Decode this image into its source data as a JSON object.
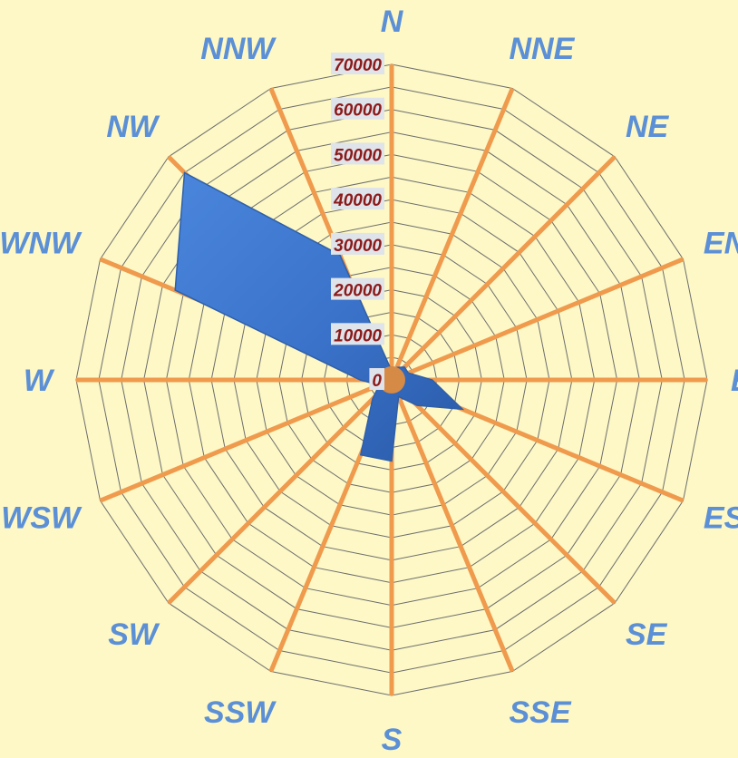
{
  "chart_data": {
    "type": "radar",
    "categories": [
      "N",
      "NNE",
      "NE",
      "ENE",
      "E",
      "ESE",
      "SE",
      "SSE",
      "S",
      "SSW",
      "SW",
      "WSW",
      "W",
      "WNW",
      "NW",
      "NNW"
    ],
    "values": [
      2000,
      3000,
      4000,
      4000,
      9000,
      17000,
      8000,
      4000,
      18000,
      18000,
      6000,
      3000,
      7000,
      52000,
      65000,
      30000
    ],
    "radial_ticks": [
      "0",
      "10000",
      "20000",
      "30000",
      "40000",
      "50000",
      "60000",
      "70000"
    ],
    "rlim": [
      0,
      70000
    ],
    "grid": true,
    "colors": {
      "background": "#fdf8c6",
      "spokes": "#ef9a4d",
      "series": "#3a72c9",
      "direction_labels": "#5b8fd6",
      "tick_labels": "#8b1a1a"
    }
  }
}
